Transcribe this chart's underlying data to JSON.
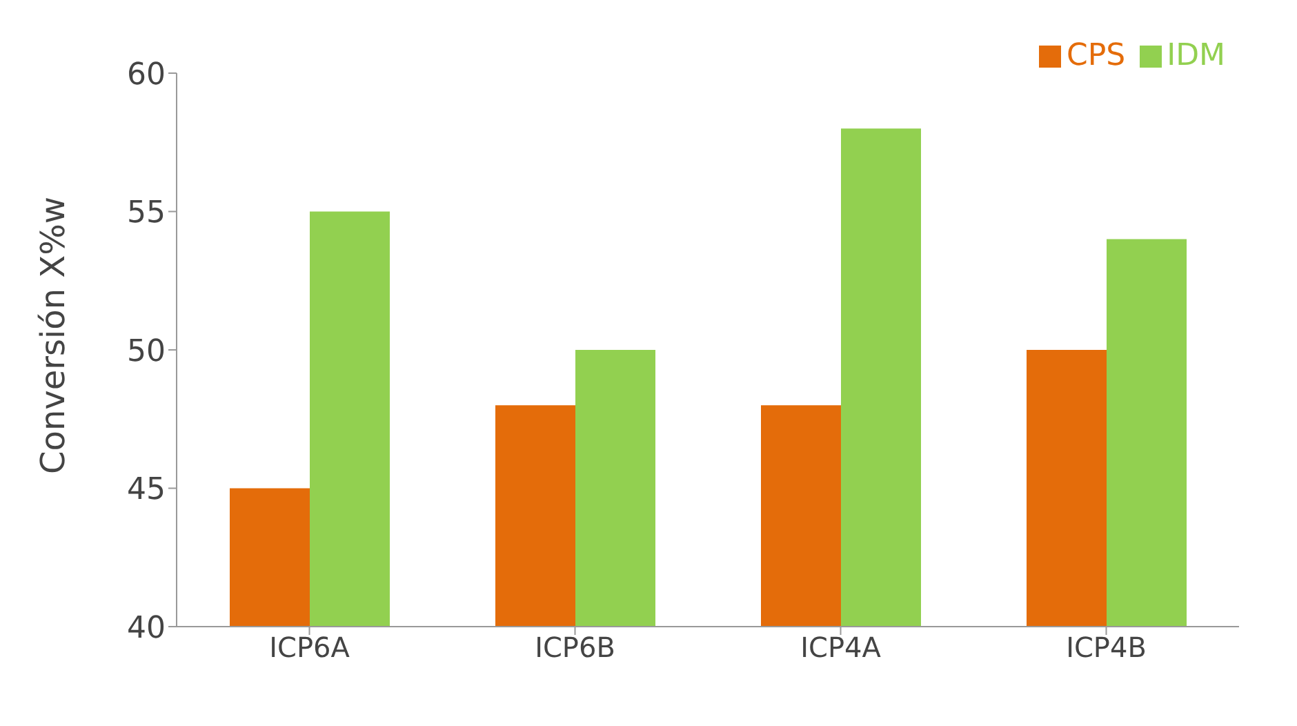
{
  "chart_data": {
    "type": "bar",
    "ylabel": "Conversión X%w",
    "categories": [
      "ICP6A",
      "ICP6B",
      "ICP4A",
      "ICP4B"
    ],
    "series": [
      {
        "name": "CPS",
        "color": "#e46c0a",
        "values": [
          45,
          48,
          48,
          50
        ]
      },
      {
        "name": "IDM",
        "color": "#92d050",
        "values": [
          55,
          50,
          58,
          54
        ]
      }
    ],
    "ylim": [
      40,
      60
    ],
    "yticks": [
      40,
      45,
      50,
      55,
      60
    ],
    "grid": false,
    "legend": "top right"
  }
}
